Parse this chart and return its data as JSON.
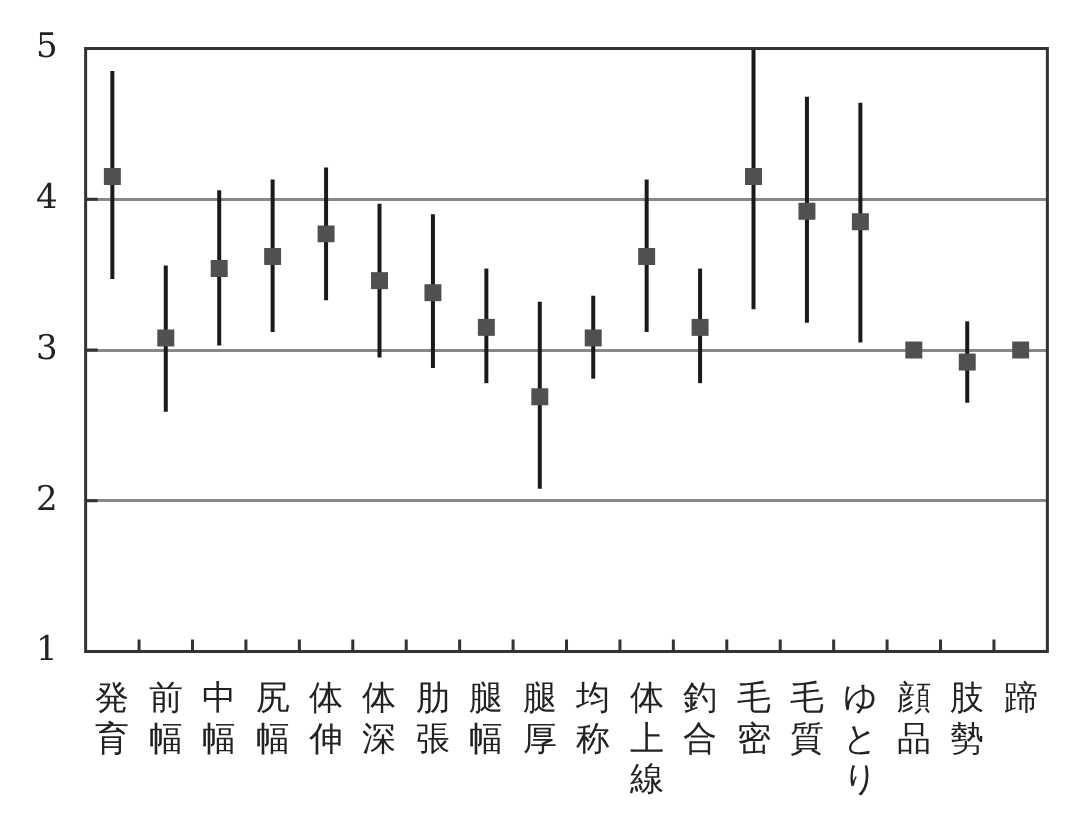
{
  "chart_data": {
    "type": "scatter",
    "categories": [
      "発育",
      "前幅",
      "中幅",
      "尻幅",
      "体伸",
      "体深",
      "肋張",
      "腿幅",
      "腿厚",
      "均称",
      "体上線",
      "釣合",
      "毛密",
      "毛質",
      "ゆとり",
      "顔品",
      "肢勢",
      "蹄"
    ],
    "series": [
      {
        "color": "#505050",
        "marker": "square",
        "values": [
          4.15,
          3.08,
          3.54,
          3.62,
          3.77,
          3.46,
          3.38,
          3.15,
          2.69,
          3.08,
          3.62,
          3.15,
          4.15,
          3.92,
          3.85,
          3.0,
          2.92,
          3.0
        ],
        "errors": [
          [
            3.47,
            4.85
          ],
          [
            2.59,
            3.56
          ],
          [
            3.03,
            4.06
          ],
          [
            3.12,
            4.13
          ],
          [
            3.33,
            4.21
          ],
          [
            2.95,
            3.97
          ],
          [
            2.88,
            3.9
          ],
          [
            2.78,
            3.54
          ],
          [
            2.08,
            3.32
          ],
          [
            2.81,
            3.36
          ],
          [
            3.12,
            4.13
          ],
          [
            2.78,
            3.54
          ],
          [
            3.27,
            5.0
          ],
          [
            3.18,
            4.68
          ],
          [
            3.05,
            4.64
          ],
          null,
          [
            2.65,
            3.19
          ],
          null
        ]
      }
    ],
    "ylim": [
      1,
      5
    ],
    "yticks": [
      1,
      2,
      3,
      4,
      5
    ],
    "grid": "y",
    "legend": false
  }
}
